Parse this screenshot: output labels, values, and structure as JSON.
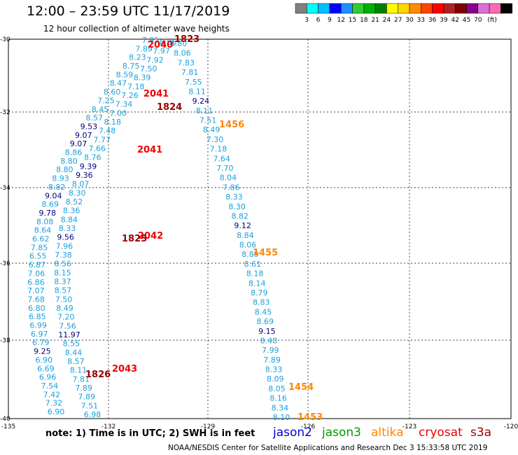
{
  "header": {
    "title": "12:00 – 23:59 UTC 11/17/2019",
    "subtitle": "12 hour collection of altimeter wave heights"
  },
  "colorbar": {
    "colors": [
      "#808080",
      "#00ffff",
      "#00bfff",
      "#0000ff",
      "#1e90ff",
      "#32cd32",
      "#00b000",
      "#008000",
      "#ffff00",
      "#ffd700",
      "#ff8c00",
      "#ff4500",
      "#ff0000",
      "#b22222",
      "#800000",
      "#8b008b",
      "#da70d6",
      "#ff69b4",
      "#000000"
    ],
    "labels": [
      "3",
      "6",
      "9",
      "12",
      "15",
      "18",
      "21",
      "24",
      "27",
      "30",
      "33",
      "36",
      "39",
      "42",
      "45",
      "70",
      "(ft)"
    ]
  },
  "footer": {
    "note": "note:  1) Time is in UTC;  2) SWH is in feet",
    "satellites": [
      {
        "name": "jason2",
        "color": "#0000cc"
      },
      {
        "name": "jason3",
        "color": "#009900"
      },
      {
        "name": "altika",
        "color": "#ff8800"
      },
      {
        "name": "cryosat",
        "color": "#ee0000"
      },
      {
        "name": "s3a",
        "color": "#990000"
      }
    ],
    "credit": "NOAA/NESDIS Center for Satellite Applications and Research     Dec  3 15:33:58 UTC 2019"
  },
  "map": {
    "lon_labels": [
      "-135",
      "-132",
      "-129",
      "-126",
      "-123",
      "-120"
    ],
    "lat_labels": [
      "-30",
      "-32",
      "-34",
      "-36",
      "-38",
      "-40"
    ],
    "time_labels": [
      {
        "text": "1823",
        "color": "#990000",
        "ix": 0
      },
      {
        "text": "2040",
        "color": "#ee0000",
        "ix": 1
      },
      {
        "text": "2041",
        "color": "#ee0000",
        "ix": 2
      },
      {
        "text": "1824",
        "color": "#990000",
        "ix": 3
      },
      {
        "text": "1456",
        "color": "#ff8800",
        "ix": 4
      },
      {
        "text": "2041",
        "color": "#ee0000",
        "ix": 5
      },
      {
        "text": "2042",
        "color": "#ee0000",
        "ix": 6
      },
      {
        "text": "1825",
        "color": "#990000",
        "ix": 7
      },
      {
        "text": "1455",
        "color": "#ff8800",
        "ix": 8
      },
      {
        "text": "2043",
        "color": "#ee0000",
        "ix": 9
      },
      {
        "text": "1826",
        "color": "#990000",
        "ix": 10
      },
      {
        "text": "1454",
        "color": "#ff8800",
        "ix": 11
      },
      {
        "text": "1453",
        "color": "#ff8800",
        "ix": 12
      }
    ],
    "tracks": [
      {
        "name": "track-a",
        "values": [
          "7.95",
          "7.89",
          "8.23",
          "8.75",
          "8.59",
          "8.47",
          "8.60",
          "7.25",
          "8.45",
          "8.57",
          "9.53",
          "9.07",
          "9.07",
          "8.86",
          "8.80",
          "8.80",
          "8.93",
          "8.82",
          "9.04",
          "8.69",
          "9.78",
          "8.08",
          "8.64",
          "6.62",
          "7.85",
          "6.55",
          "6.87",
          "7.06",
          "6.86",
          "7.07",
          "7.68",
          "6.80",
          "6.85",
          "6.99",
          "6.97",
          "6.79",
          "9.25",
          "6.90",
          "6.69",
          "6.96",
          "7.54",
          "7.42",
          "7.32",
          "6.90"
        ]
      },
      {
        "name": "track-b",
        "values": [
          "8.86",
          "7.97",
          "7.92",
          "7.50",
          "8.39",
          "7.18",
          "7.26",
          "7.34",
          "7.00",
          "8.18",
          "7.48",
          "7.77",
          "7.66",
          "8.76",
          "9.39",
          "9.36",
          "8.07",
          "8.30",
          "8.52",
          "8.36",
          "8.84",
          "8.33",
          "9.56",
          "7.96",
          "7.38",
          "8.56",
          "8.15",
          "8.37",
          "8.57",
          "7.50",
          "8.49",
          "7.20",
          "7.56",
          "11.97",
          "8.55",
          "8.44",
          "8.57",
          "8.11",
          "7.81",
          "7.89",
          "7.89",
          "7.51",
          "6.98"
        ]
      },
      {
        "name": "track-c",
        "values": [
          "8.80",
          "8.06",
          "7.83",
          "7.81",
          "7.55",
          "8.11",
          "9.24",
          "8.11",
          "7.51",
          "8.49",
          "7.30",
          "7.18",
          "7.64",
          "7.70",
          "8.04",
          "7.86",
          "8.33",
          "8.30",
          "8.82",
          "9.12",
          "8.84",
          "8.06",
          "8.89",
          "8.61",
          "8.18",
          "8.14",
          "8.79",
          "8.83",
          "8.45",
          "8.69",
          "9.15",
          "8.48",
          "7.99",
          "7.89",
          "8.33",
          "8.09",
          "8.05",
          "8.16",
          "8.34",
          "8.10"
        ]
      }
    ]
  }
}
